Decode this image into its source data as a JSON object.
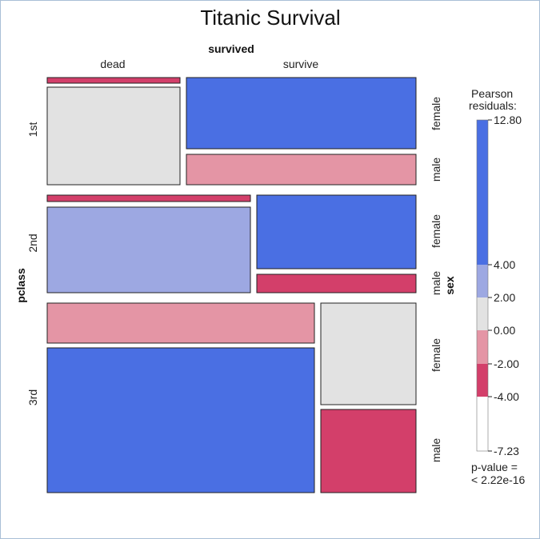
{
  "chart_data": {
    "type": "mosaic",
    "title": "Titanic Survival",
    "col_variable": "survived",
    "row_variable": "pclass",
    "side_variable": "sex",
    "col_levels": [
      "dead",
      "survive"
    ],
    "row_levels": [
      "1st",
      "2nd",
      "3rd"
    ],
    "side_levels": [
      "female",
      "male"
    ],
    "cells": [
      {
        "pclass": "1st",
        "sex": "female",
        "survived": "dead",
        "residual": -5.5
      },
      {
        "pclass": "1st",
        "sex": "female",
        "survived": "survive",
        "residual": 9.5
      },
      {
        "pclass": "1st",
        "sex": "male",
        "survived": "dead",
        "residual": 1.0
      },
      {
        "pclass": "1st",
        "sex": "male",
        "survived": "survive",
        "residual": -3.0
      },
      {
        "pclass": "2nd",
        "sex": "female",
        "survived": "dead",
        "residual": -5.0
      },
      {
        "pclass": "2nd",
        "sex": "female",
        "survived": "survive",
        "residual": 8.0
      },
      {
        "pclass": "2nd",
        "sex": "male",
        "survived": "dead",
        "residual": 3.0
      },
      {
        "pclass": "2nd",
        "sex": "male",
        "survived": "survive",
        "residual": -5.0
      },
      {
        "pclass": "3rd",
        "sex": "female",
        "survived": "dead",
        "residual": -3.0
      },
      {
        "pclass": "3rd",
        "sex": "female",
        "survived": "survive",
        "residual": 1.0
      },
      {
        "pclass": "3rd",
        "sex": "male",
        "survived": "dead",
        "residual": 5.5
      },
      {
        "pclass": "3rd",
        "sex": "male",
        "survived": "survive",
        "residual": -6.0
      }
    ],
    "legend": {
      "title_lines": [
        "Pearson",
        "residuals:"
      ],
      "breaks": [
        "12.80",
        "4.00",
        "2.00",
        "0.00",
        "-2.00",
        "-4.00",
        "-7.23"
      ],
      "colors": [
        "#4a6fe3",
        "#9da8e2",
        "#e2e2e2",
        "#e495a5",
        "#d33f6a"
      ],
      "pvalue_lines": [
        "p-value =",
        "< 2.22e-16"
      ]
    }
  }
}
